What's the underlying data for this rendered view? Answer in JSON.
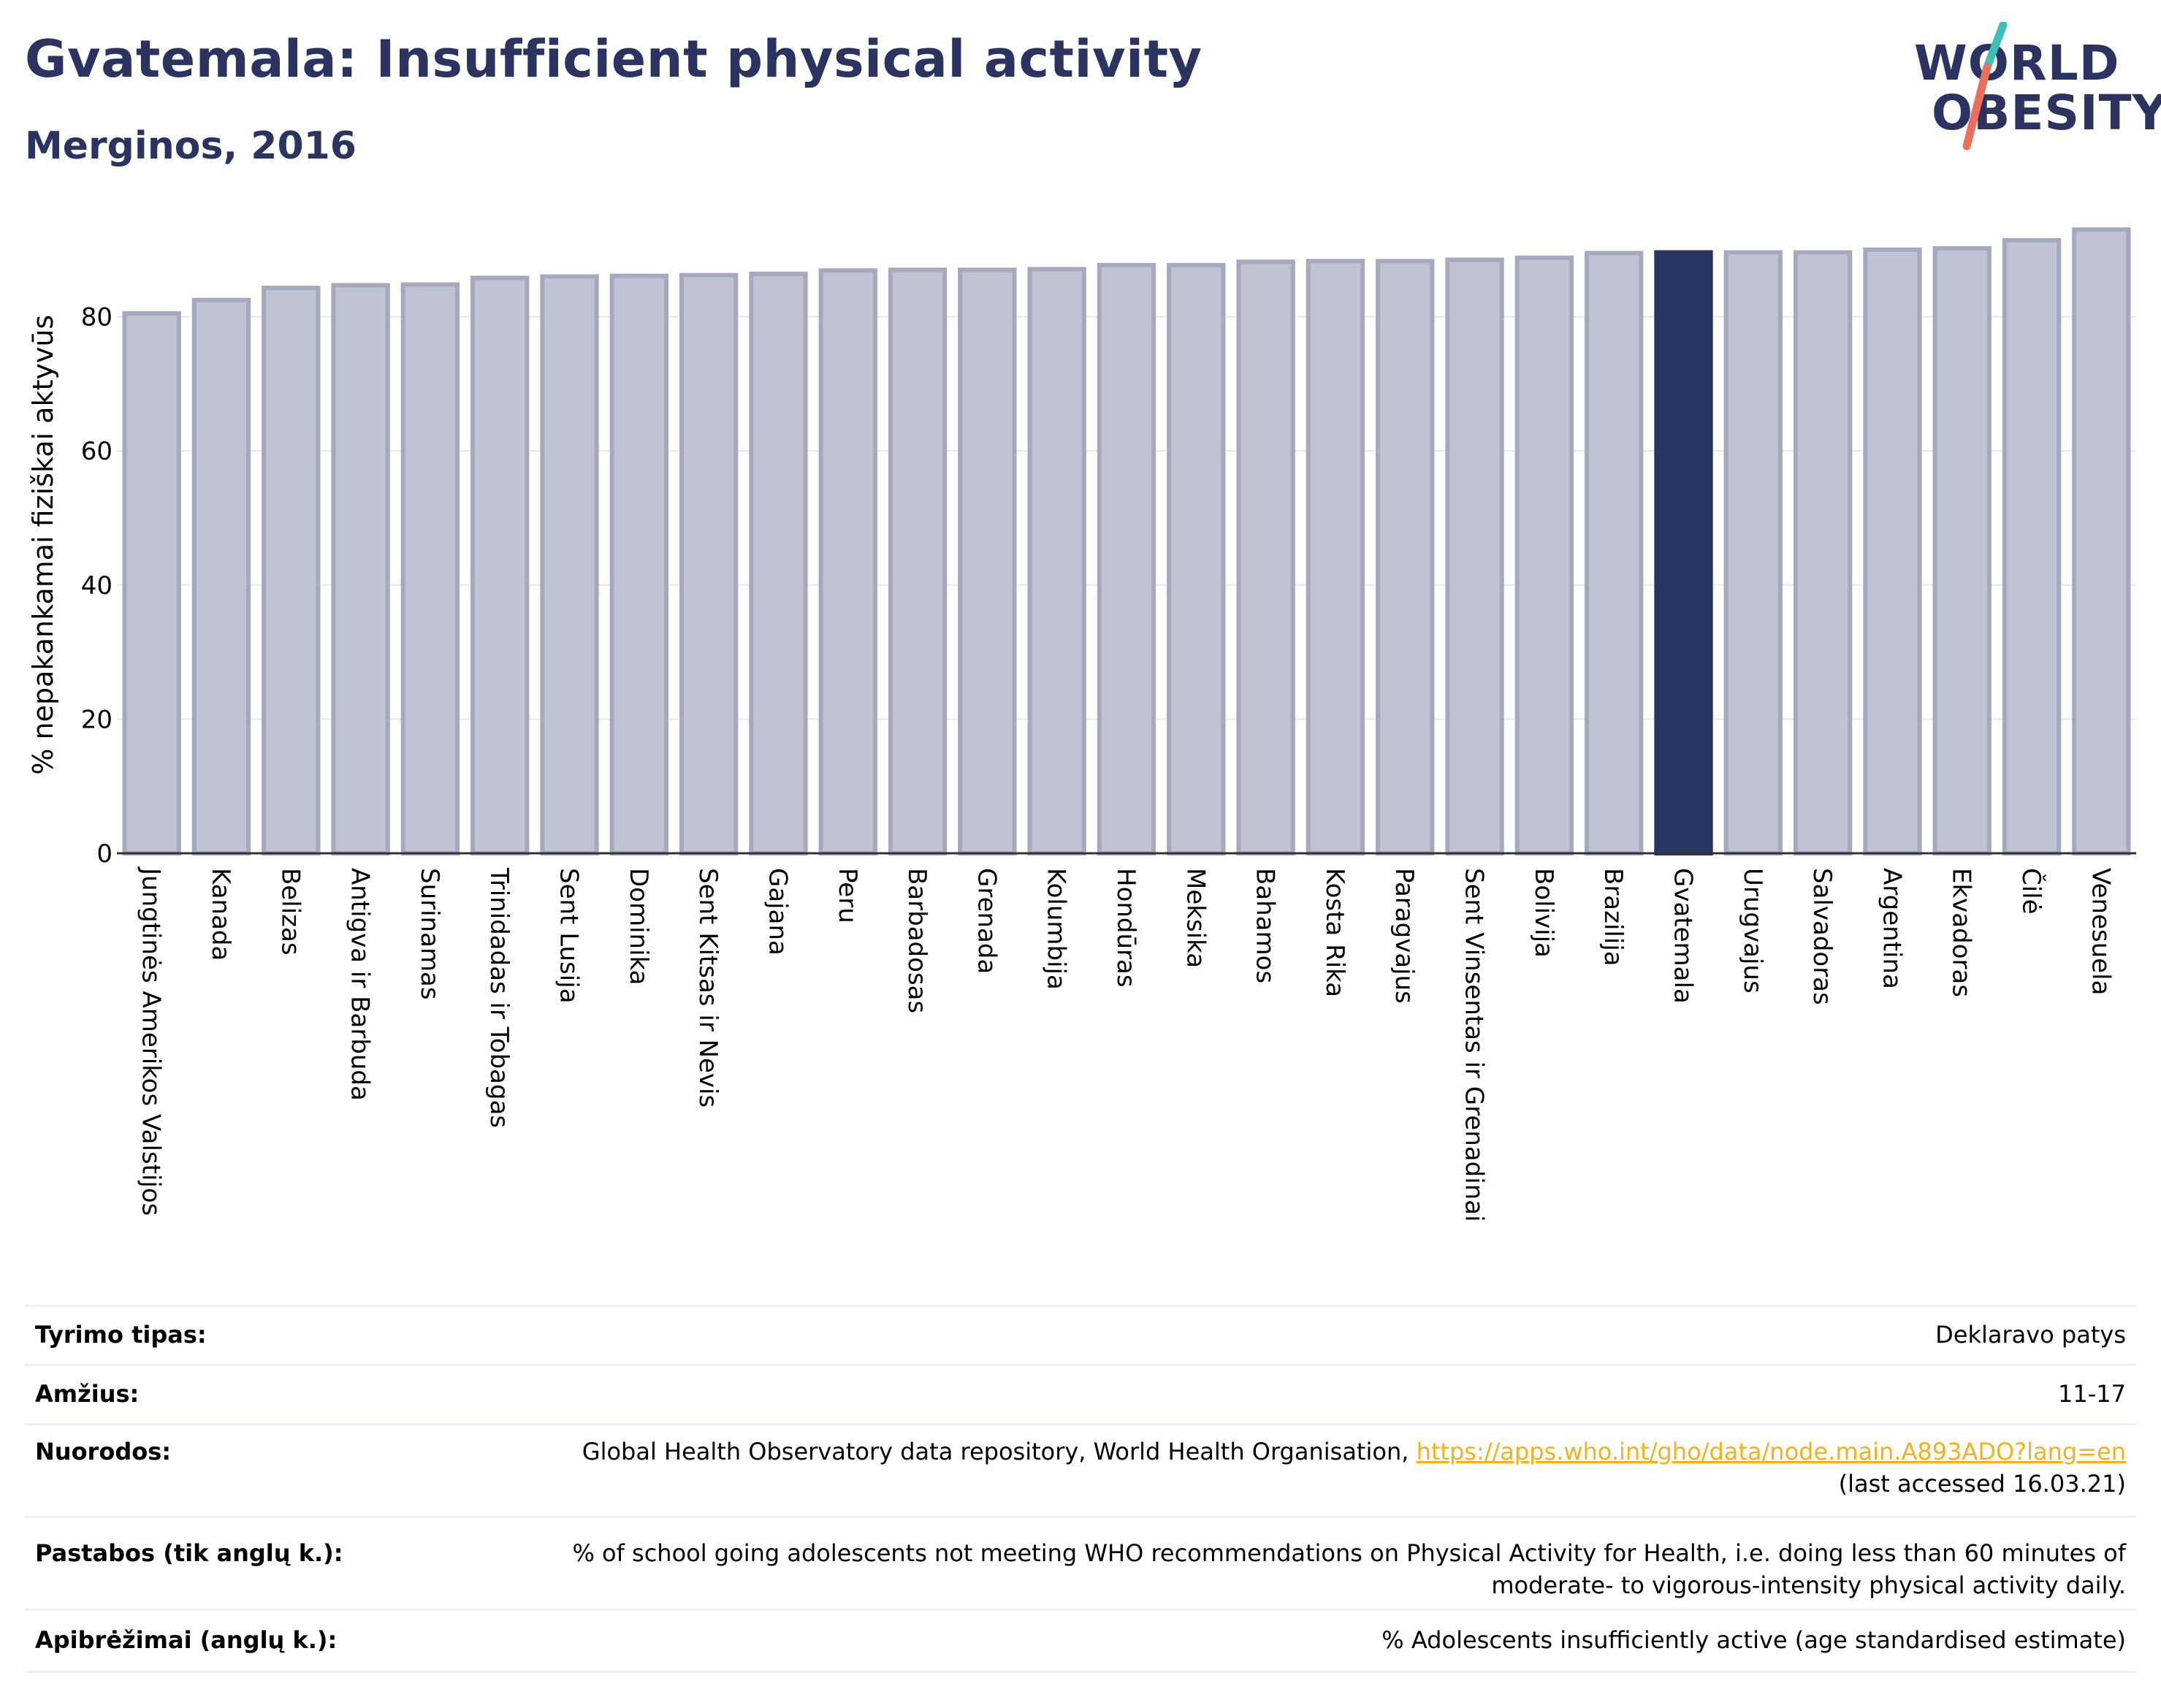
{
  "header": {
    "title": "Gvatemala: Insufficient physical activity",
    "subtitle": "Merginos, 2016",
    "logo_line1": "WORLD",
    "logo_line2": "OBESITY"
  },
  "colors": {
    "title": "#2b3461",
    "bar": "#c0c3d1",
    "bar_border": "#a5a9bf",
    "highlight": "#283462",
    "link": "#f2b21d",
    "logo_teal": "#3fbdb7",
    "logo_coral": "#e8705c"
  },
  "chart_data": {
    "type": "bar",
    "ylabel": "% nepakankamai fiziškai aktyvūs",
    "ylim": [
      0,
      96
    ],
    "yticks": [
      0,
      20,
      40,
      60,
      80
    ],
    "grid": true,
    "highlight": "Gvatemala",
    "categories": [
      "Jungtinės Amerikos Valstijos",
      "Kanada",
      "Belizas",
      "Antigva ir Barbuda",
      "Surinamas",
      "Trinidadas ir Tobagas",
      "Sent Lusija",
      "Dominika",
      "Sent Kitsas ir Nevis",
      "Gajana",
      "Peru",
      "Barbadosas",
      "Grenada",
      "Kolumbija",
      "Hondūras",
      "Meksika",
      "Bahamos",
      "Kosta Rika",
      "Paragvajus",
      "Sent Vinsentas ir Grenadinai",
      "Bolivija",
      "Brazilija",
      "Gvatemala",
      "Urugvajus",
      "Salvadoras",
      "Argentina",
      "Ekvadoras",
      "Čilė",
      "Venesuela"
    ],
    "values": [
      80.5,
      82.5,
      84.3,
      84.7,
      84.8,
      85.8,
      86.0,
      86.1,
      86.2,
      86.4,
      86.9,
      87.0,
      87.0,
      87.1,
      87.7,
      87.7,
      88.2,
      88.3,
      88.3,
      88.5,
      88.8,
      89.5,
      89.6,
      89.6,
      89.6,
      90.0,
      90.2,
      91.4,
      93.0
    ]
  },
  "table": {
    "rows": [
      {
        "label": "Tyrimo tipas:",
        "value": "Deklaravo patys"
      },
      {
        "label": "Amžius:",
        "value": "11-17"
      },
      {
        "label": "Nuorodos:",
        "value_prefix": "Global Health Observatory data repository, World Health Organisation, ",
        "link": "https://apps.who.int/gho/data/node.main.A893ADO?lang=en",
        "value_suffix": "(last accessed 16.03.21)"
      },
      {
        "label": "Pastabos (tik anglų k.):",
        "value_line1": "% of school going adolescents not meeting WHO recommendations on Physical Activity for Health, i.e. doing less than 60 minutes of",
        "value_line2": "moderate- to vigorous-intensity physical activity daily."
      },
      {
        "label": "Apibrėžimai (anglų k.):",
        "value": "% Adolescents insufficiently active (age standardised estimate)"
      }
    ]
  }
}
